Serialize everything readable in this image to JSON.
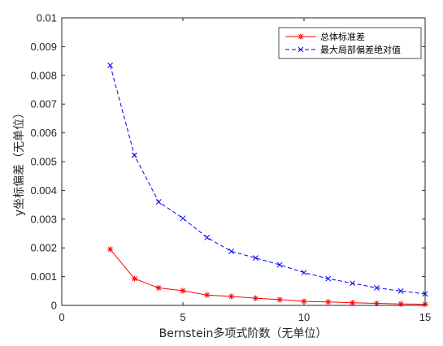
{
  "chart_data": {
    "type": "line",
    "xlabel": "Bernstein多项式阶数（无单位）",
    "ylabel": "y坐标偏差（无单位）",
    "xlim": [
      0,
      15
    ],
    "ylim": [
      0,
      0.01
    ],
    "xticks": [
      0,
      5,
      10,
      15
    ],
    "xtick_labels": [
      "0",
      "5",
      "10",
      "15"
    ],
    "yticks": [
      0,
      0.001,
      0.002,
      0.003,
      0.004,
      0.005,
      0.006,
      0.007,
      0.008,
      0.009,
      0.01
    ],
    "ytick_labels": [
      "0",
      "0.001",
      "0.002",
      "0.003",
      "0.004",
      "0.005",
      "0.006",
      "0.007",
      "0.008",
      "0.009",
      "0.01"
    ],
    "grid": false,
    "legend_position": "top-right",
    "x": [
      2,
      3,
      4,
      5,
      6,
      7,
      8,
      9,
      10,
      11,
      12,
      13,
      14,
      15
    ],
    "series": [
      {
        "name": "总体标准差",
        "color": "#ff0000",
        "line_style": "solid",
        "marker": "asterisk",
        "values": [
          0.00195,
          0.00093,
          0.00061,
          0.00051,
          0.00036,
          0.00031,
          0.00025,
          0.0002,
          0.00014,
          0.00012,
          9e-05,
          7e-05,
          5e-05,
          4e-05
        ]
      },
      {
        "name": "最大局部偏差绝对值",
        "color": "#0000ff",
        "line_style": "dashed",
        "marker": "x",
        "values": [
          0.00835,
          0.00522,
          0.0036,
          0.00303,
          0.00236,
          0.00188,
          0.00165,
          0.00141,
          0.00114,
          0.00093,
          0.00077,
          0.00061,
          0.0005,
          0.0004
        ]
      }
    ]
  }
}
